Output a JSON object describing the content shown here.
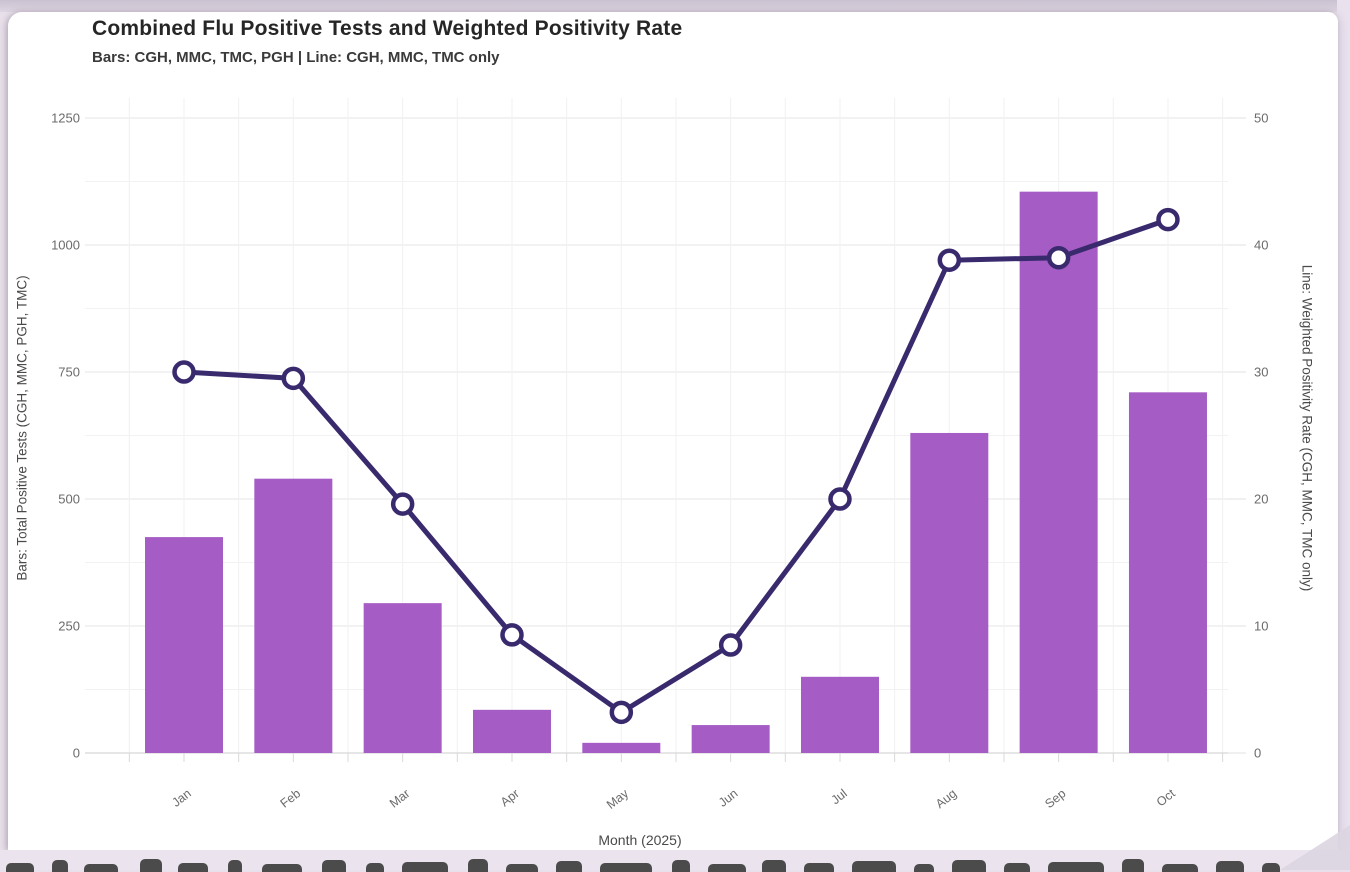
{
  "chart_data": {
    "type": "bar",
    "combo": "bar+line",
    "title": "Combined Flu Positive Tests and Weighted Positivity Rate",
    "subtitle": "Bars: CGH, MMC, TMC, PGH | Line: CGH, MMC, TMC only",
    "categories": [
      "Jan",
      "Feb",
      "Mar",
      "Apr",
      "May",
      "Jun",
      "Jul",
      "Aug",
      "Sep",
      "Oct"
    ],
    "series": [
      {
        "name": "Combined Flu Positive Tests",
        "type": "bar",
        "axis": "left",
        "values": [
          425,
          540,
          295,
          85,
          20,
          55,
          150,
          630,
          1105,
          710
        ],
        "color": "#a55cc5"
      },
      {
        "name": "Weighted Positivity Rate",
        "type": "line",
        "axis": "right",
        "values": [
          30.0,
          29.5,
          19.6,
          9.3,
          3.2,
          8.5,
          20.0,
          38.8,
          39.0,
          42.0
        ],
        "color": "#392a6e",
        "marker_fill": "#ffffff"
      }
    ],
    "xlabel": "Month (2025)",
    "ylabel_left": "Bars: Total Positive Tests (CGH, MMC, PGH, TMC)",
    "ylabel_right": "Line: Weighted Positivity Rate (CGH, MMC, TMC only)",
    "yticks_left": [
      0,
      250,
      500,
      750,
      1000,
      1250
    ],
    "yticks_right": [
      0,
      10,
      20,
      30,
      40,
      50
    ],
    "ylim_left": [
      0,
      1250
    ],
    "ylim_right": [
      0,
      50
    ],
    "grid": true,
    "legend_position": "none"
  },
  "colors": {
    "bar_purple": "#a55cc5",
    "line_indigo": "#392a6e",
    "card_background": "#ffffff",
    "page_background": "#e8e0ea",
    "gridline": "#ededed",
    "tick_text": "#6b6b6b"
  }
}
